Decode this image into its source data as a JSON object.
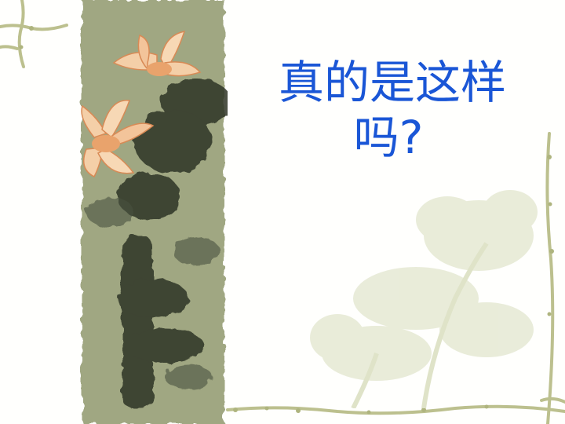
{
  "slide": {
    "title_line1": "真的是这样",
    "title_line2": "吗?"
  },
  "colors": {
    "title": "#1a56d6",
    "painting_bg": "#a7ad89",
    "ink": "#2e3326",
    "lotus": "#f2c7a0",
    "border_vine": "#b8bd8a"
  },
  "icons": [
    "lotus-painting",
    "vine-border",
    "faint-flower-watermark"
  ]
}
